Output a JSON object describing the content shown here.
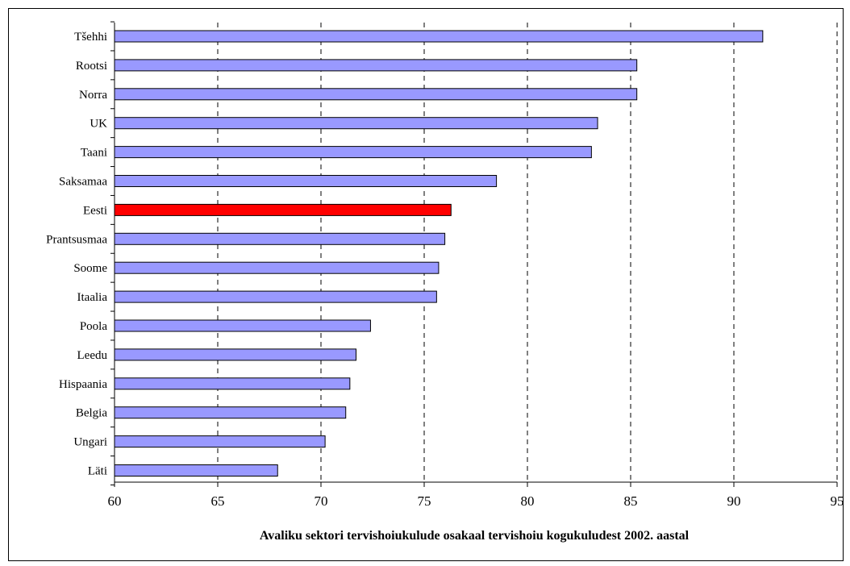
{
  "chart_data": {
    "type": "bar",
    "orientation": "horizontal",
    "categories": [
      "Tšehhi",
      "Rootsi",
      "Norra",
      "UK",
      "Taani",
      "Saksamaa",
      "Eesti",
      "Prantsusmaa",
      "Soome",
      "Itaalia",
      "Poola",
      "Leedu",
      "Hispaania",
      "Belgia",
      "Ungari",
      "Läti"
    ],
    "values": [
      91.4,
      85.3,
      85.3,
      83.4,
      83.1,
      78.5,
      76.3,
      76.0,
      75.7,
      75.6,
      72.4,
      71.7,
      71.4,
      71.2,
      70.2,
      67.9
    ],
    "highlight": "Eesti",
    "xlabel": "Avaliku sektori tervishoiukulude osakaal tervishoiu kogukuludest 2002. aastal",
    "xlim": [
      60,
      95
    ],
    "xticks": [
      60,
      65,
      70,
      75,
      80,
      85,
      90,
      95
    ],
    "grid": "vertical-dashed",
    "colors": {
      "bar": "#9999FF",
      "highlight": "#FF0000",
      "edge": "#000000",
      "grid": "#000000"
    }
  }
}
